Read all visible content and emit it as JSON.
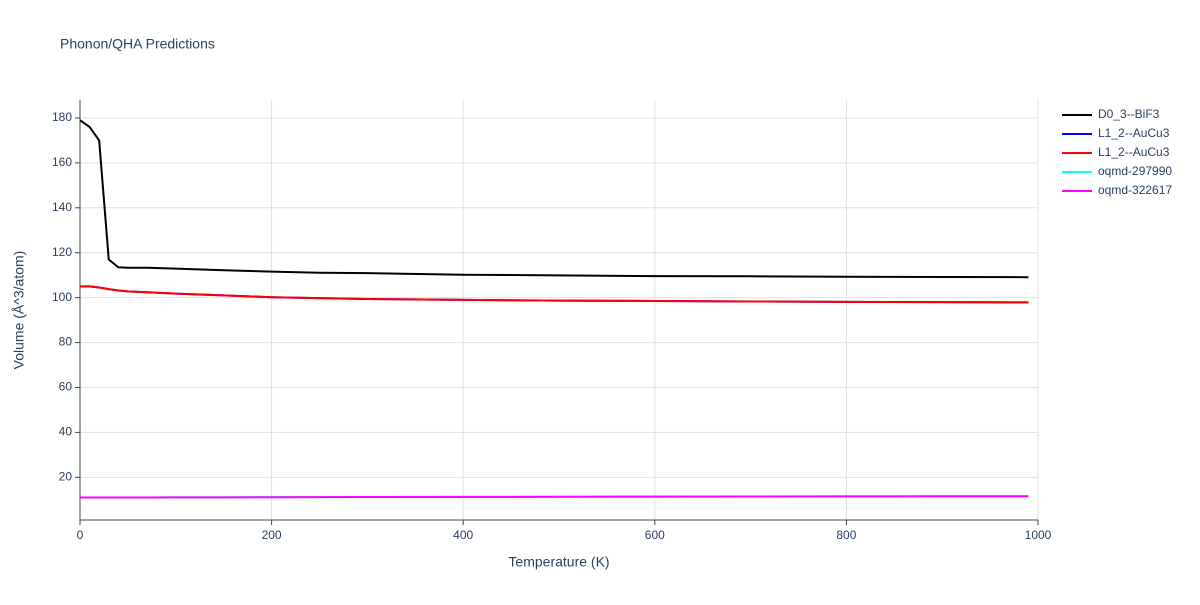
{
  "chart_data": {
    "type": "line",
    "title": "Phonon/QHA Predictions",
    "xlabel": "Temperature (K)",
    "ylabel": "Volume (Å^3/atom)",
    "x": [
      0,
      10,
      20,
      30,
      40,
      50,
      70,
      100,
      150,
      200,
      250,
      300,
      400,
      500,
      600,
      700,
      800,
      900,
      990
    ],
    "series": [
      {
        "name": "D0_3--BiF3",
        "color": "#000000",
        "values": [
          179,
          176,
          170,
          117,
          113.5,
          113.3,
          113.3,
          112.9,
          112.2,
          111.6,
          111.1,
          110.9,
          110.2,
          109.9,
          109.6,
          109.5,
          109.3,
          109.2,
          109.1
        ]
      },
      {
        "name": "L1_2--AuCu3",
        "color": "#0000ff",
        "values": [
          105,
          105,
          104.5,
          103.8,
          103.2,
          102.8,
          102.4,
          101.8,
          101,
          100.2,
          99.8,
          99.4,
          99,
          98.7,
          98.5,
          98.3,
          98.1,
          98,
          97.9
        ]
      },
      {
        "name": "L1_2--AuCu3",
        "color": "#ff0000",
        "values": [
          105,
          105,
          104.5,
          103.8,
          103.2,
          102.8,
          102.4,
          101.8,
          101,
          100.2,
          99.8,
          99.4,
          99,
          98.7,
          98.5,
          98.3,
          98.1,
          98,
          97.9
        ]
      },
      {
        "name": "oqmd-297990",
        "color": "#00ffff",
        "values": [
          11,
          11,
          11,
          11,
          11,
          11,
          11,
          11.05,
          11.1,
          11.15,
          11.2,
          11.25,
          11.3,
          11.35,
          11.4,
          11.45,
          11.5,
          11.55,
          11.6
        ]
      },
      {
        "name": "oqmd-322617",
        "color": "#ff00ff",
        "values": [
          11,
          11,
          11,
          11,
          11,
          11,
          11,
          11.05,
          11.1,
          11.15,
          11.2,
          11.25,
          11.3,
          11.35,
          11.4,
          11.45,
          11.5,
          11.55,
          11.6
        ]
      }
    ],
    "xlim": [
      0,
      1000
    ],
    "xticks": [
      0,
      200,
      400,
      600,
      800,
      1000
    ],
    "ylim": [
      1,
      188
    ],
    "yticks": [
      20,
      40,
      60,
      80,
      100,
      120,
      140,
      160,
      180
    ],
    "grid": true,
    "legend": "right"
  }
}
